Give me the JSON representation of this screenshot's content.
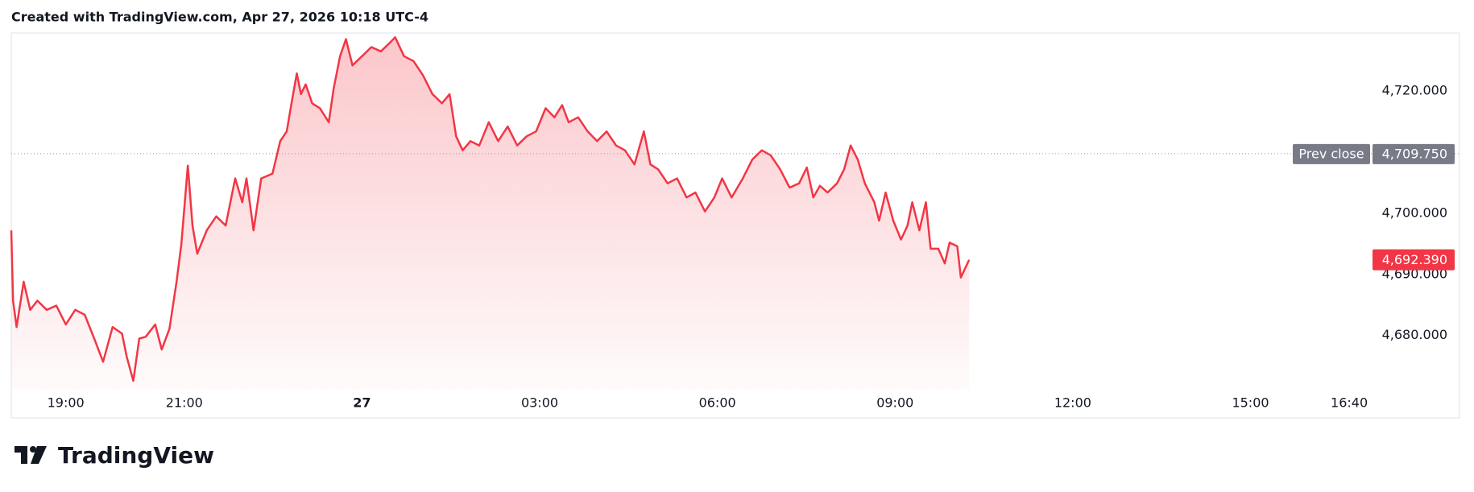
{
  "header": "Created with TradingView.com, Apr 27, 2026 10:18 UTC-4",
  "brand": "TradingView",
  "chart_data": {
    "type": "area",
    "color": "#f23645",
    "x": [
      -5.92,
      -5.89,
      -5.83,
      -5.71,
      -5.6,
      -5.48,
      -5.32,
      -5.16,
      -5,
      -4.84,
      -4.68,
      -4.52,
      -4.37,
      -4.21,
      -4.05,
      -3.97,
      -3.86,
      -3.76,
      -3.65,
      -3.49,
      -3.38,
      -3.25,
      -3.13,
      -3.05,
      -2.94,
      -2.86,
      -2.78,
      -2.62,
      -2.46,
      -2.3,
      -2.14,
      -2.02,
      -1.95,
      -1.83,
      -1.7,
      -1.51,
      -1.38,
      -1.27,
      -1.19,
      -1.1,
      -1.03,
      -0.95,
      -0.84,
      -0.71,
      -0.56,
      -0.48,
      -0.37,
      -0.27,
      -0.16,
      0,
      0.16,
      0.32,
      0.48,
      0.56,
      0.71,
      0.87,
      1.03,
      1.19,
      1.35,
      1.48,
      1.59,
      1.7,
      1.83,
      1.98,
      2.14,
      2.3,
      2.46,
      2.62,
      2.78,
      2.94,
      3.1,
      3.25,
      3.38,
      3.49,
      3.65,
      3.81,
      3.97,
      4.13,
      4.29,
      4.44,
      4.6,
      4.76,
      4.87,
      5,
      5.16,
      5.32,
      5.48,
      5.63,
      5.79,
      5.95,
      6.08,
      6.24,
      6.43,
      6.59,
      6.75,
      6.9,
      7.06,
      7.22,
      7.38,
      7.51,
      7.62,
      7.73,
      7.86,
      8.02,
      8.14,
      8.25,
      8.37,
      8.49,
      8.65,
      8.73,
      8.84,
      8.97,
      9.1,
      9.21,
      9.29,
      9.41,
      9.52,
      9.6,
      9.73,
      9.84,
      9.92,
      10.05,
      10.11,
      10.25
    ],
    "values": [
      4697.2,
      4685.7,
      4681.4,
      4688.8,
      4684.2,
      4685.7,
      4684.2,
      4684.9,
      4681.8,
      4684.2,
      4683.4,
      4679.5,
      4675.7,
      4681.4,
      4680.3,
      4676.5,
      4672.6,
      4679.5,
      4679.8,
      4681.8,
      4677.7,
      4681.1,
      4688.8,
      4694.9,
      4707.8,
      4698.0,
      4693.4,
      4697.2,
      4699.5,
      4698.0,
      4705.7,
      4701.8,
      4705.7,
      4697.2,
      4705.7,
      4706.5,
      4711.8,
      4713.4,
      4718.0,
      4722.9,
      4719.5,
      4721.1,
      4718.0,
      4717.2,
      4714.9,
      4720.3,
      4725.7,
      4728.5,
      4724.2,
      4725.7,
      4727.2,
      4726.5,
      4728.0,
      4728.8,
      4725.7,
      4724.9,
      4722.6,
      4719.5,
      4718.0,
      4719.5,
      4712.6,
      4710.3,
      4711.8,
      4711.1,
      4714.9,
      4711.8,
      4714.2,
      4711.1,
      4712.6,
      4713.4,
      4717.2,
      4715.7,
      4717.7,
      4714.9,
      4715.7,
      4713.4,
      4711.8,
      4713.4,
      4711.1,
      4710.3,
      4708.0,
      4713.4,
      4708.0,
      4707.2,
      4704.9,
      4705.7,
      4702.6,
      4703.4,
      4700.3,
      4702.6,
      4705.7,
      4702.6,
      4705.7,
      4708.8,
      4710.3,
      4709.5,
      4707.2,
      4704.2,
      4704.9,
      4707.5,
      4702.6,
      4704.5,
      4703.4,
      4704.9,
      4707.2,
      4711.1,
      4708.8,
      4704.9,
      4701.8,
      4698.8,
      4703.4,
      4698.8,
      4695.7,
      4698.0,
      4701.8,
      4697.2,
      4701.8,
      4694.2,
      4694.2,
      4691.8,
      4695.2,
      4694.6,
      4689.5,
      4692.39
    ],
    "xlim": [
      -5.92,
      17.06
    ],
    "xticks": [
      {
        "value": -5,
        "label": "19:00"
      },
      {
        "value": -3,
        "label": "21:00"
      },
      {
        "value": 0,
        "label": "27"
      },
      {
        "value": 3,
        "label": "03:00"
      },
      {
        "value": 6,
        "label": "06:00"
      },
      {
        "value": 9,
        "label": "09:00"
      },
      {
        "value": 12,
        "label": "12:00"
      },
      {
        "value": 15,
        "label": "15:00"
      },
      {
        "value": 16.667,
        "label": "16:40"
      }
    ],
    "ylim": [
      4671,
      4729.5
    ],
    "yticks": [
      {
        "value": 4680,
        "label": "4,680.000"
      },
      {
        "value": 4690,
        "label": "4,690.000"
      },
      {
        "value": 4700,
        "label": "4,700.000"
      },
      {
        "value": 4720,
        "label": "4,720.000"
      }
    ],
    "prev_close": {
      "label": "Prev close",
      "value": 4709.75,
      "value_label": "4,709.750"
    },
    "last_price": {
      "value": 4692.39,
      "value_label": "4,692.390"
    }
  }
}
